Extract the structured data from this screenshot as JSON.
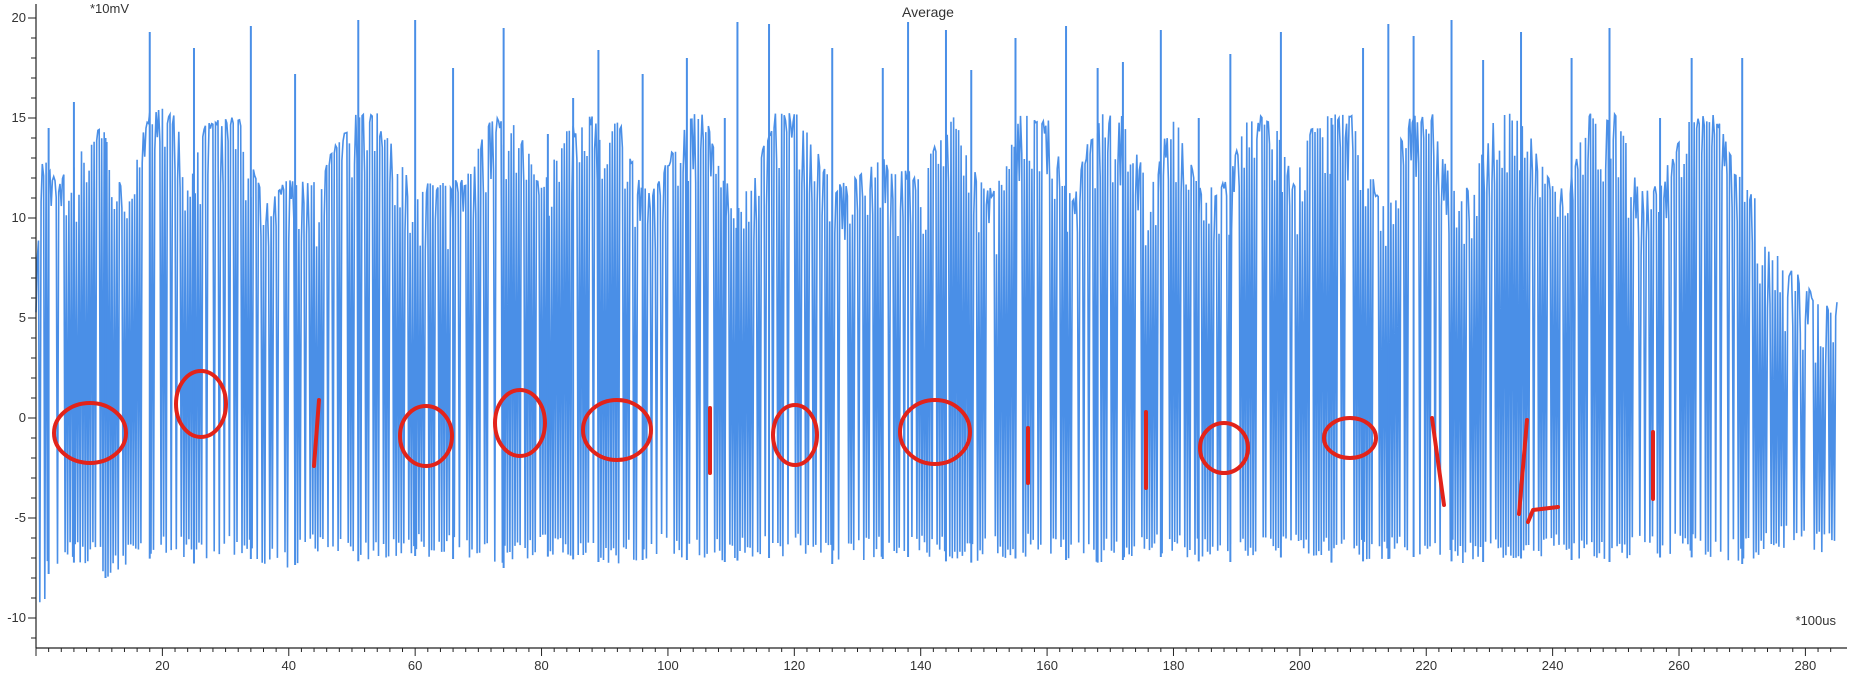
{
  "chart_data": {
    "type": "line",
    "title": "Average",
    "y_unit": "*10mV",
    "x_unit": "*100us",
    "xlim": [
      0,
      285
    ],
    "ylim": [
      -11,
      20.5
    ],
    "x_ticks": [
      20,
      40,
      60,
      80,
      100,
      120,
      140,
      160,
      180,
      200,
      220,
      240,
      260,
      280
    ],
    "y_ticks": [
      20,
      15,
      10,
      5,
      0,
      -5,
      -10
    ],
    "grid": false,
    "legend": "none",
    "series": [
      {
        "color": "#4a8fe7",
        "high_envelope": [
          [
            0,
            7
          ],
          [
            1,
            13
          ],
          [
            4,
            12
          ],
          [
            7,
            13.5
          ],
          [
            10,
            14.5
          ],
          [
            11,
            14.5
          ],
          [
            12,
            11.5
          ],
          [
            15,
            12.5
          ],
          [
            18,
            15.5
          ],
          [
            22,
            15.5
          ],
          [
            24,
            11.8
          ],
          [
            27,
            15.0
          ],
          [
            32,
            15.2
          ],
          [
            36,
            11.2
          ],
          [
            40,
            12.0
          ],
          [
            44,
            11.8
          ],
          [
            50,
            15.2
          ],
          [
            54,
            15.3
          ],
          [
            60,
            11.3
          ],
          [
            62,
            11.8
          ],
          [
            68,
            12.0
          ],
          [
            72,
            15.2
          ],
          [
            76,
            14.7
          ],
          [
            80,
            11.8
          ],
          [
            84,
            14.5
          ],
          [
            88,
            15.2
          ],
          [
            92,
            15.2
          ],
          [
            96,
            11.5
          ],
          [
            98,
            11.5
          ],
          [
            103,
            15.2
          ],
          [
            106,
            15.2
          ],
          [
            110,
            11.2
          ],
          [
            113,
            11.7
          ],
          [
            117,
            15.3
          ],
          [
            121,
            15.2
          ],
          [
            126,
            11.8
          ],
          [
            129,
            11.8
          ],
          [
            133,
            13.4
          ],
          [
            136,
            12.6
          ],
          [
            140,
            12.3
          ],
          [
            145,
            15.2
          ],
          [
            150,
            11.5
          ],
          [
            152,
            11.5
          ],
          [
            156,
            15.3
          ],
          [
            160,
            15.2
          ],
          [
            164,
            11.3
          ],
          [
            168,
            15.3
          ],
          [
            172,
            15.1
          ],
          [
            176,
            11.8
          ],
          [
            180,
            15.3
          ],
          [
            184,
            11.8
          ],
          [
            186,
            11.6
          ],
          [
            188,
            11.8
          ],
          [
            192,
            15.3
          ],
          [
            196,
            15.2
          ],
          [
            199,
            11.7
          ],
          [
            202,
            15.0
          ],
          [
            208,
            15.3
          ],
          [
            212,
            11.6
          ],
          [
            214,
            11.6
          ],
          [
            217,
            15.2
          ],
          [
            221,
            15.2
          ],
          [
            224,
            11.8
          ],
          [
            227,
            11.8
          ],
          [
            231,
            15.3
          ],
          [
            235,
            15.2
          ],
          [
            240,
            11.6
          ],
          [
            242,
            11.6
          ],
          [
            246,
            15.3
          ],
          [
            250,
            15.2
          ],
          [
            254,
            11.6
          ],
          [
            257,
            11.6
          ],
          [
            261,
            15.1
          ],
          [
            266,
            15.3
          ],
          [
            270,
            11.8
          ],
          [
            272,
            11.2
          ],
          [
            274,
            8.5
          ],
          [
            278,
            7.5
          ],
          [
            282,
            6.0
          ],
          [
            285,
            5.8
          ]
        ],
        "low_envelope": [
          [
            0,
            -9.5
          ],
          [
            1,
            -10.2
          ],
          [
            2,
            -7.8
          ],
          [
            4,
            -7.2
          ],
          [
            10,
            -7.3
          ],
          [
            11,
            -8.0
          ],
          [
            14,
            -7.5
          ],
          [
            20,
            -6.8
          ],
          [
            24,
            -7.2
          ],
          [
            28,
            -7.5
          ],
          [
            32,
            -6.8
          ],
          [
            36,
            -7.3
          ],
          [
            40,
            -7.5
          ],
          [
            44,
            -6.9
          ],
          [
            52,
            -7.2
          ],
          [
            60,
            -6.9
          ],
          [
            68,
            -7.1
          ],
          [
            74,
            -7.5
          ],
          [
            80,
            -6.9
          ],
          [
            86,
            -7.1
          ],
          [
            92,
            -7.3
          ],
          [
            100,
            -6.9
          ],
          [
            106,
            -7.3
          ],
          [
            112,
            -7.1
          ],
          [
            120,
            -6.9
          ],
          [
            126,
            -7.3
          ],
          [
            132,
            -7.1
          ],
          [
            140,
            -6.9
          ],
          [
            146,
            -7.3
          ],
          [
            152,
            -7.1
          ],
          [
            160,
            -6.9
          ],
          [
            166,
            -7.3
          ],
          [
            172,
            -7.1
          ],
          [
            180,
            -6.9
          ],
          [
            186,
            -7.3
          ],
          [
            192,
            -7.1
          ],
          [
            200,
            -6.9
          ],
          [
            206,
            -7.3
          ],
          [
            212,
            -7.1
          ],
          [
            220,
            -6.9
          ],
          [
            226,
            -7.3
          ],
          [
            232,
            -7.1
          ],
          [
            240,
            -6.9
          ],
          [
            246,
            -7.3
          ],
          [
            252,
            -7.1
          ],
          [
            260,
            -6.9
          ],
          [
            266,
            -7.1
          ],
          [
            270,
            -7.3
          ],
          [
            276,
            -6.5
          ],
          [
            280,
            -6.8
          ],
          [
            285,
            -6.8
          ]
        ],
        "spikes": [
          [
            2,
            14.5
          ],
          [
            6,
            15.8
          ],
          [
            11,
            14.0
          ],
          [
            18,
            19.3
          ],
          [
            25,
            18.5
          ],
          [
            34,
            19.6
          ],
          [
            41,
            17.2
          ],
          [
            51,
            19.9
          ],
          [
            60,
            19.9
          ],
          [
            66,
            17.5
          ],
          [
            74,
            19.5
          ],
          [
            81,
            14.2
          ],
          [
            85,
            16.0
          ],
          [
            89,
            18.4
          ],
          [
            96,
            17.2
          ],
          [
            103,
            18.0
          ],
          [
            109,
            15.0
          ],
          [
            111,
            19.8
          ],
          [
            116,
            19.7
          ],
          [
            126,
            18.5
          ],
          [
            134,
            17.5
          ],
          [
            138,
            19.8
          ],
          [
            144,
            19.4
          ],
          [
            148,
            17.4
          ],
          [
            155,
            19.0
          ],
          [
            163,
            19.6
          ],
          [
            168,
            17.5
          ],
          [
            172,
            17.8
          ],
          [
            178,
            19.4
          ],
          [
            184,
            15.0
          ],
          [
            189,
            18.2
          ],
          [
            197,
            19.3
          ],
          [
            205,
            15.0
          ],
          [
            210,
            18.5
          ],
          [
            214,
            19.7
          ],
          [
            218,
            19.1
          ],
          [
            224,
            19.9
          ],
          [
            229,
            17.9
          ],
          [
            235,
            19.3
          ],
          [
            243,
            18.0
          ],
          [
            249,
            19.5
          ],
          [
            257,
            15.0
          ],
          [
            262,
            18.0
          ],
          [
            270,
            18.0
          ]
        ]
      }
    ]
  },
  "annotations": {
    "color": "#e2231a",
    "glyphs": [
      "0",
      "0",
      "1",
      "0",
      "0",
      "0",
      "1",
      "0",
      "0",
      "1",
      "1",
      "0",
      "0",
      "1",
      "1",
      "1"
    ]
  }
}
